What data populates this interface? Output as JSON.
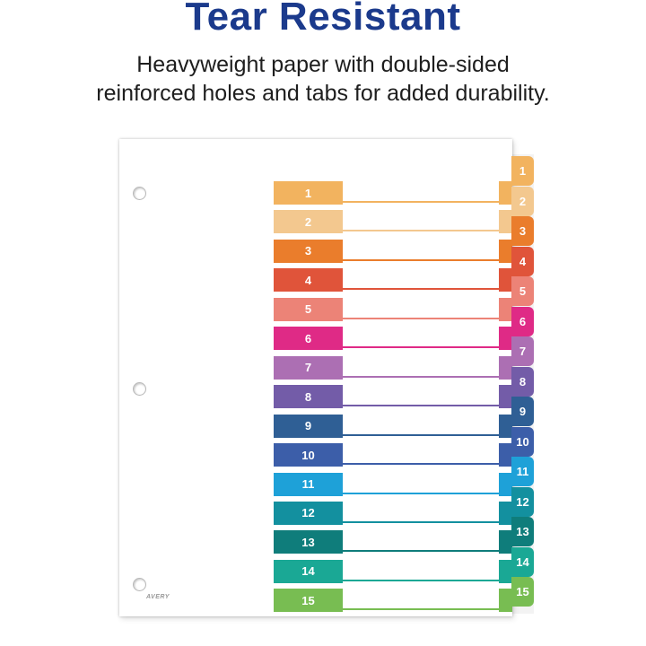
{
  "header": {
    "title": "Tear Resistant",
    "line1": "Heavyweight paper with double-sided",
    "line2": "reinforced holes and tabs for added durability."
  },
  "sheet": {
    "brand": "AVERY"
  },
  "tabs": [
    {
      "label": "1",
      "color": "#f2b35f"
    },
    {
      "label": "2",
      "color": "#f3c88f"
    },
    {
      "label": "3",
      "color": "#ea7d2c"
    },
    {
      "label": "4",
      "color": "#e0543a"
    },
    {
      "label": "5",
      "color": "#ec8377"
    },
    {
      "label": "6",
      "color": "#df2a86"
    },
    {
      "label": "7",
      "color": "#ac6fb3"
    },
    {
      "label": "8",
      "color": "#735ca8"
    },
    {
      "label": "9",
      "color": "#2f5f95"
    },
    {
      "label": "10",
      "color": "#3c5ea9"
    },
    {
      "label": "11",
      "color": "#1ea1d8"
    },
    {
      "label": "12",
      "color": "#13909f"
    },
    {
      "label": "13",
      "color": "#0f7d7b"
    },
    {
      "label": "14",
      "color": "#1aa895"
    },
    {
      "label": "15",
      "color": "#78bd52"
    }
  ]
}
